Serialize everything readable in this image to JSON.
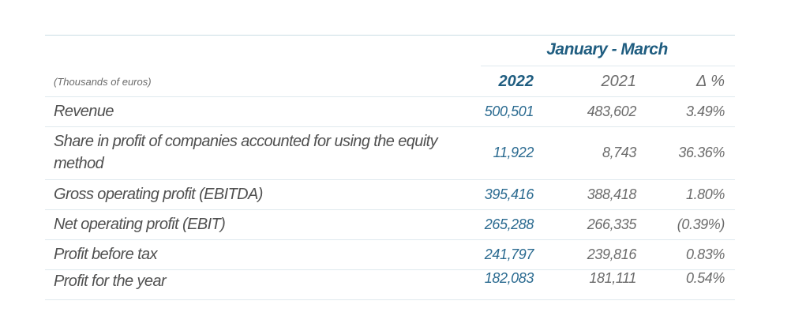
{
  "table": {
    "period_label": "January - March",
    "unit_label": "(Thousands of euros)",
    "columns": {
      "y2022": "2022",
      "y2021": "2021",
      "delta": "Δ %"
    },
    "rows": [
      {
        "label": "Revenue",
        "v2022": "500,501",
        "v2021": "483,602",
        "delta": "3.49%"
      },
      {
        "label": "Share in profit of companies accounted for using the equity method",
        "v2022": "11,922",
        "v2021": "8,743",
        "delta": "36.36%"
      },
      {
        "label": "Gross operating profit (EBITDA)",
        "v2022": "395,416",
        "v2021": "388,418",
        "delta": "1.80%"
      },
      {
        "label": "Net operating profit (EBIT)",
        "v2022": "265,288",
        "v2021": "266,335",
        "delta": "(0.39%)"
      },
      {
        "label": "Profit before tax",
        "v2022": "241,797",
        "v2021": "239,816",
        "delta": "0.83%"
      },
      {
        "label": "Profit for the year",
        "v2022": "182,083",
        "v2021": "181,111",
        "delta": "0.54%"
      }
    ]
  }
}
